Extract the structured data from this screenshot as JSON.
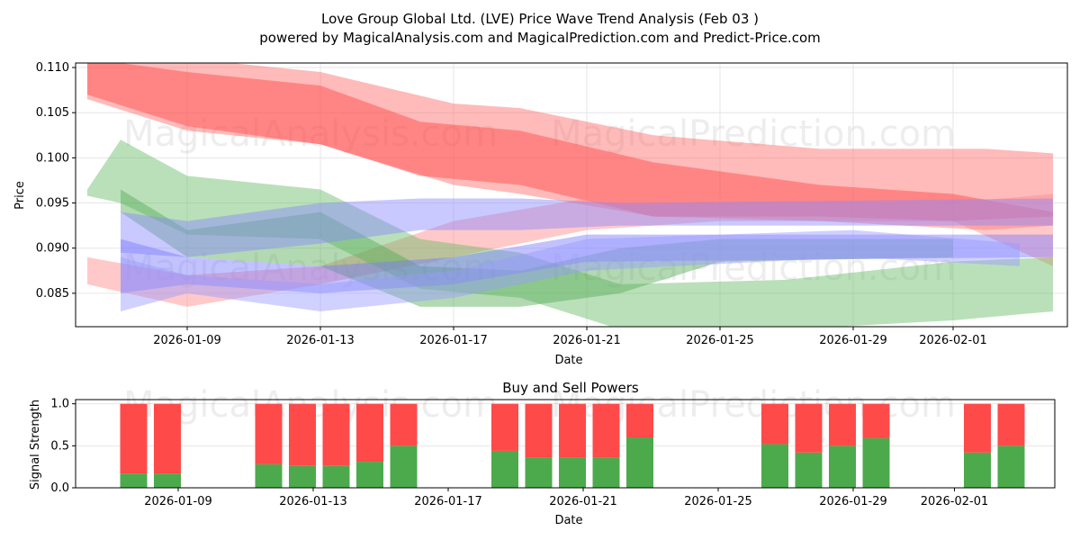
{
  "title": "Love Group Global Ltd. (LVE) Price Wave Trend Analysis (Feb 03 )",
  "subtitle": "powered by MagicalAnalysis.com and MagicalPrediction.com and Predict-Price.com",
  "watermarks": [
    "MagicalAnalysis.com",
    "MagicalPrediction.com"
  ],
  "chart_data": [
    {
      "type": "area",
      "title": "",
      "xlabel": "Date",
      "ylabel": "Price",
      "ylim": [
        0.0813,
        0.1105
      ],
      "yticks": [
        "0.085",
        "0.090",
        "0.095",
        "0.100",
        "0.105",
        "0.110"
      ],
      "xticks": [
        "2026-01-09",
        "2026-01-13",
        "2026-01-17",
        "2026-01-21",
        "2026-01-25",
        "2026-01-29",
        "2026-02-01"
      ],
      "grid": true,
      "bands": [
        {
          "color": "#ff6666",
          "points": [
            [
              "2026-01-06",
              0.111,
              0.1065
            ],
            [
              "2026-01-09",
              0.111,
              0.103
            ],
            [
              "2026-01-13",
              0.1095,
              0.1015
            ],
            [
              "2026-01-17",
              0.106,
              0.097
            ],
            [
              "2026-01-19",
              0.1055,
              0.096
            ],
            [
              "2026-01-23",
              0.1025,
              0.0935
            ],
            [
              "2026-01-28",
              0.101,
              0.093
            ],
            [
              "2026-02-02",
              0.101,
              0.092
            ],
            [
              "2026-02-04",
              0.1005,
              0.0925
            ]
          ]
        },
        {
          "color": "#ff4444",
          "points": [
            [
              "2026-01-06",
              0.111,
              0.107
            ],
            [
              "2026-01-09",
              0.1095,
              0.1035
            ],
            [
              "2026-01-13",
              0.108,
              0.1015
            ],
            [
              "2026-01-16",
              0.104,
              0.098
            ],
            [
              "2026-01-19",
              0.103,
              0.097
            ],
            [
              "2026-01-23",
              0.0995,
              0.0935
            ],
            [
              "2026-01-28",
              0.097,
              0.0935
            ],
            [
              "2026-02-01",
              0.096,
              0.093
            ],
            [
              "2026-02-04",
              0.094,
              0.0935
            ]
          ]
        },
        {
          "color": "#ff8888",
          "points": [
            [
              "2026-01-06",
              0.089,
              0.086
            ],
            [
              "2026-01-09",
              0.087,
              0.0835
            ],
            [
              "2026-01-13",
              0.088,
              0.086
            ],
            [
              "2026-01-17",
              0.093,
              0.089
            ],
            [
              "2026-01-21",
              0.0955,
              0.092
            ],
            [
              "2026-01-25",
              0.0955,
              0.093
            ],
            [
              "2026-02-01",
              0.095,
              0.093
            ],
            [
              "2026-02-04",
              0.096,
              0.088
            ]
          ]
        },
        {
          "color": "#66bb66",
          "points": [
            [
              "2026-01-06",
              0.0965,
              0.0958
            ],
            [
              "2026-01-07",
              0.102,
              0.095
            ],
            [
              "2026-01-09",
              0.098,
              0.0915
            ],
            [
              "2026-01-13",
              0.0965,
              0.091
            ],
            [
              "2026-01-16",
              0.091,
              0.0855
            ],
            [
              "2026-01-19",
              0.0895,
              0.0845
            ],
            [
              "2026-01-22",
              0.086,
              0.081
            ],
            [
              "2026-01-27",
              0.0865,
              0.081
            ],
            [
              "2026-02-01",
              0.0885,
              0.082
            ],
            [
              "2026-02-04",
              0.089,
              0.083
            ]
          ]
        },
        {
          "color": "#55aa55",
          "points": [
            [
              "2026-01-07",
              0.0965,
              0.094
            ],
            [
              "2026-01-09",
              0.092,
              0.089
            ],
            [
              "2026-01-13",
              0.094,
              0.088
            ],
            [
              "2026-01-16",
              0.088,
              0.0835
            ],
            [
              "2026-01-19",
              0.0875,
              0.0835
            ],
            [
              "2026-01-22",
              0.09,
              0.085
            ],
            [
              "2026-01-25",
              0.091,
              0.0885
            ],
            [
              "2026-02-01",
              0.091,
              0.089
            ]
          ]
        },
        {
          "color": "#8888ff",
          "points": [
            [
              "2026-01-07",
              0.094,
              0.0895
            ],
            [
              "2026-01-09",
              0.093,
              0.089
            ],
            [
              "2026-01-13",
              0.095,
              0.0905
            ],
            [
              "2026-01-16",
              0.0955,
              0.092
            ],
            [
              "2026-01-19",
              0.0955,
              0.092
            ],
            [
              "2026-01-22",
              0.095,
              0.0925
            ],
            [
              "2026-02-04",
              0.0955,
              0.0925
            ]
          ]
        },
        {
          "color": "#7777ff",
          "points": [
            [
              "2026-01-07",
              0.091,
              0.085
            ],
            [
              "2026-01-09",
              0.089,
              0.086
            ],
            [
              "2026-01-13",
              0.088,
              0.085
            ],
            [
              "2026-01-17",
              0.089,
              0.086
            ],
            [
              "2026-01-21",
              0.0915,
              0.0885
            ],
            [
              "2026-02-04",
              0.0915,
              0.089
            ]
          ]
        },
        {
          "color": "#9999ff",
          "points": [
            [
              "2026-01-07",
              0.089,
              0.083
            ],
            [
              "2026-01-09",
              0.087,
              0.085
            ],
            [
              "2026-01-13",
              0.086,
              0.083
            ],
            [
              "2026-01-17",
              0.0875,
              0.0845
            ],
            [
              "2026-01-21",
              0.091,
              0.0875
            ],
            [
              "2026-01-29",
              0.092,
              0.089
            ],
            [
              "2026-02-03",
              0.0905,
              0.088
            ]
          ]
        }
      ]
    },
    {
      "type": "bar",
      "title": "Buy and Sell Powers",
      "xlabel": "Date",
      "ylabel": "Signal Strength",
      "ylim": [
        0,
        1.05
      ],
      "yticks": [
        "0.0",
        "0.5",
        "1.0"
      ],
      "xticks": [
        "2026-01-09",
        "2026-01-13",
        "2026-01-17",
        "2026-01-21",
        "2026-01-25",
        "2026-01-29",
        "2026-02-01"
      ],
      "categories": [
        "2026-01-08",
        "2026-01-09",
        "2026-01-12",
        "2026-01-13",
        "2026-01-14",
        "2026-01-15",
        "2026-01-16",
        "2026-01-19",
        "2026-01-20",
        "2026-01-21",
        "2026-01-22",
        "2026-01-23",
        "2026-01-27",
        "2026-01-28",
        "2026-01-29",
        "2026-01-30",
        "2026-02-02",
        "2026-02-03"
      ],
      "series": [
        {
          "name": "Buy",
          "color": "#4caa4c",
          "values": [
            0.17,
            0.17,
            0.28,
            0.26,
            0.26,
            0.31,
            0.5,
            0.44,
            0.36,
            0.36,
            0.36,
            0.6,
            0.52,
            0.42,
            0.5,
            0.59,
            0.42,
            0.5
          ]
        },
        {
          "name": "Sell",
          "color": "#ff4a4a",
          "values": [
            0.83,
            0.83,
            0.72,
            0.74,
            0.74,
            0.69,
            0.5,
            0.56,
            0.64,
            0.64,
            0.64,
            0.4,
            0.48,
            0.58,
            0.5,
            0.41,
            0.58,
            0.5
          ]
        }
      ]
    }
  ]
}
